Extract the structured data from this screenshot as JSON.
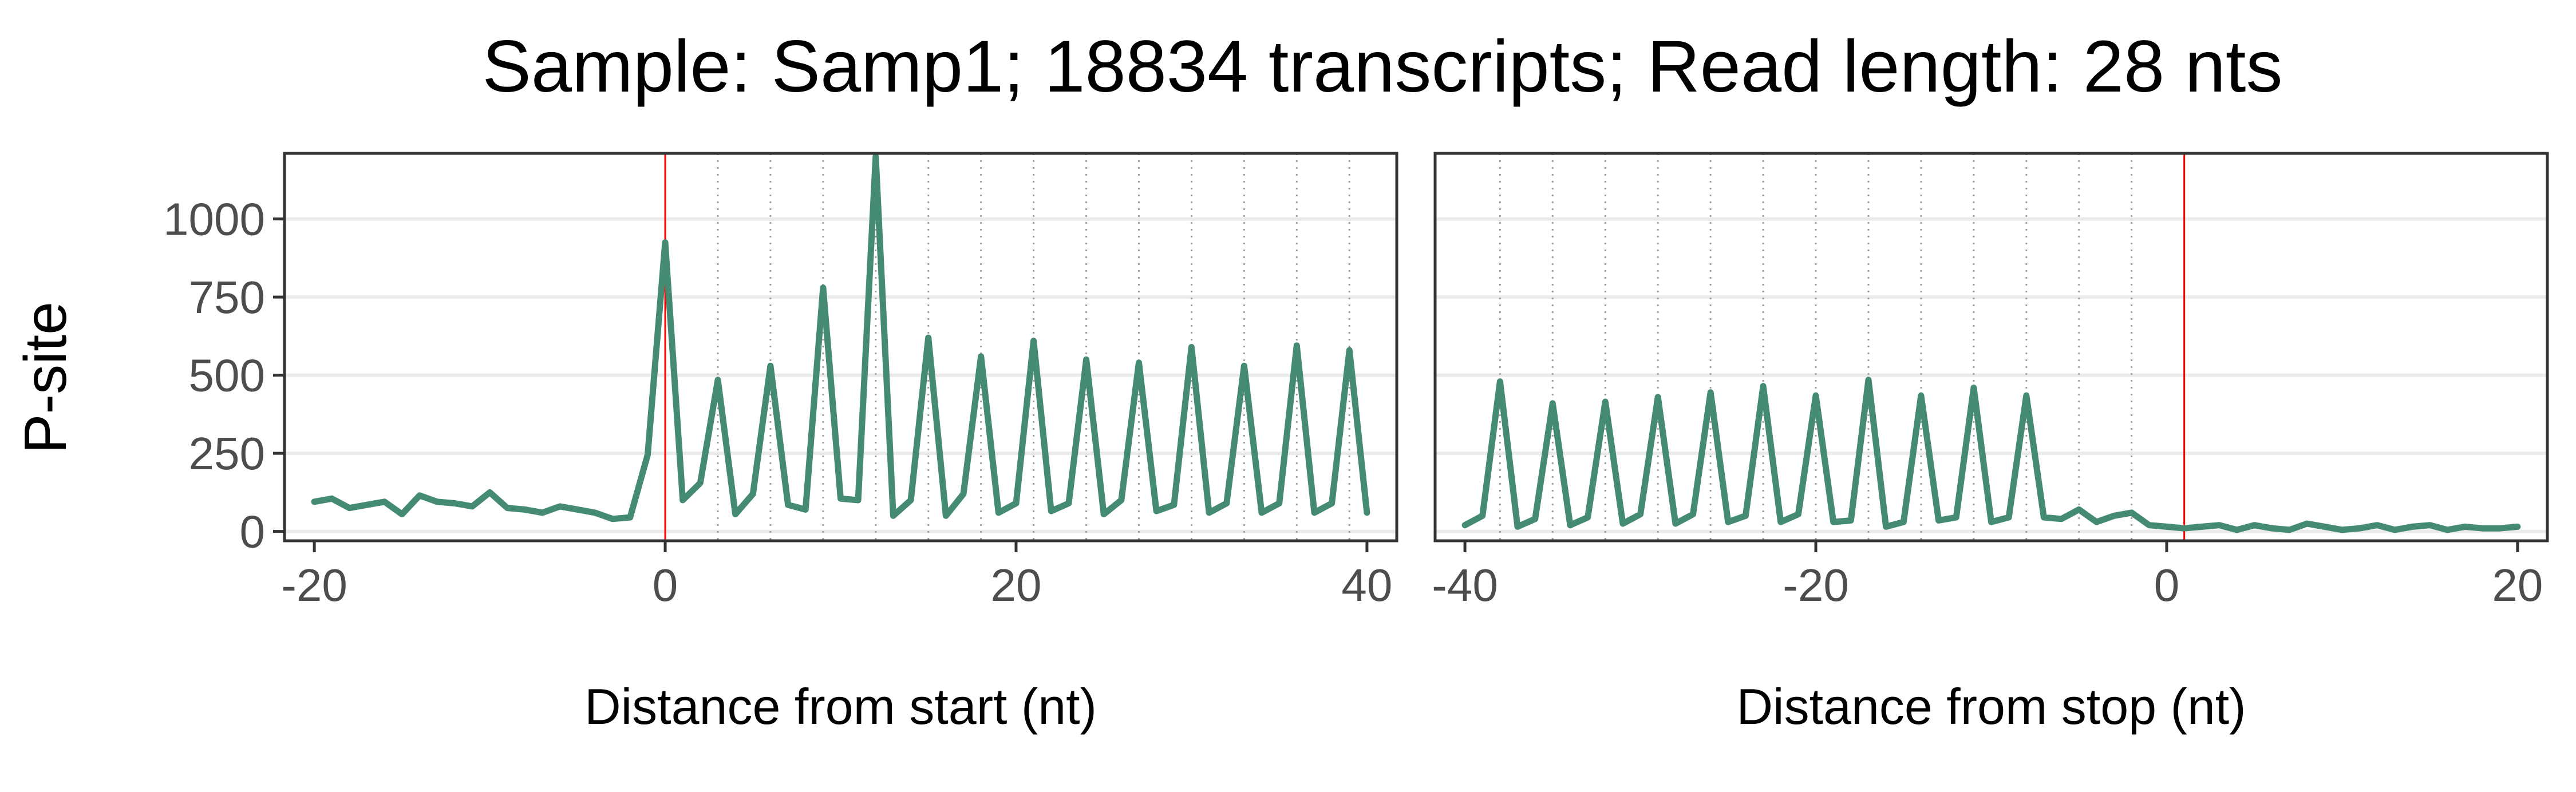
{
  "chart_data": {
    "type": "line",
    "title": "Sample: Samp1; 18834 transcripts; Read length: 28 nts",
    "ylabel": "P-site",
    "ylim": [
      -30,
      1210
    ],
    "yticks": [
      0,
      250,
      500,
      750,
      1000
    ],
    "grid": "horizontal",
    "legend": "none",
    "line_color": "#458b74",
    "reference_line_color": "#ff0000",
    "codon_line_color": "#a0a0a0",
    "panels": [
      {
        "xlabel": "Distance from start (nt)",
        "xlim": [
          -21.7,
          41.7
        ],
        "xticks": [
          -20,
          0,
          20,
          40
        ],
        "reference_x": 0,
        "codon_lines": [
          3,
          6,
          9,
          12,
          15,
          18,
          21,
          24,
          27,
          30,
          33,
          36,
          39
        ],
        "series": [
          {
            "x": [
              -20,
              -19,
              -18,
              -17,
              -16,
              -15,
              -14,
              -13,
              -12,
              -11,
              -10,
              -9,
              -8,
              -7,
              -6,
              -5,
              -4,
              -3,
              -2,
              -1,
              0,
              1,
              2,
              3,
              4,
              5,
              6,
              7,
              8,
              9,
              10,
              11,
              12,
              13,
              14,
              15,
              16,
              17,
              18,
              19,
              20,
              21,
              22,
              23,
              24,
              25,
              26,
              27,
              28,
              29,
              30,
              31,
              32,
              33,
              34,
              35,
              36,
              37,
              38,
              39,
              40
            ],
            "y": [
              95,
              105,
              75,
              85,
              95,
              55,
              115,
              95,
              90,
              80,
              125,
              75,
              70,
              60,
              80,
              70,
              60,
              40,
              45,
              245,
              925,
              100,
              155,
              485,
              55,
              120,
              530,
              85,
              70,
              780,
              105,
              100,
              1200,
              50,
              100,
              620,
              50,
              120,
              560,
              60,
              90,
              610,
              65,
              90,
              550,
              55,
              100,
              540,
              65,
              85,
              590,
              60,
              90,
              530,
              60,
              90,
              595,
              60,
              90,
              580,
              60
            ]
          }
        ]
      },
      {
        "xlabel": "Distance from stop (nt)",
        "xlim": [
          -41.7,
          21.7
        ],
        "xticks": [
          -40,
          -20,
          0,
          20
        ],
        "reference_x": 1,
        "codon_lines": [
          -38,
          -35,
          -32,
          -29,
          -26,
          -23,
          -20,
          -17,
          -14,
          -11,
          -8,
          -5,
          -2
        ],
        "series": [
          {
            "x": [
              -40,
              -39,
              -38,
              -37,
              -36,
              -35,
              -34,
              -33,
              -32,
              -31,
              -30,
              -29,
              -28,
              -27,
              -26,
              -25,
              -24,
              -23,
              -22,
              -21,
              -20,
              -19,
              -18,
              -17,
              -16,
              -15,
              -14,
              -13,
              -12,
              -11,
              -10,
              -9,
              -8,
              -7,
              -6,
              -5,
              -4,
              -3,
              -2,
              -1,
              0,
              1,
              2,
              3,
              4,
              5,
              6,
              7,
              8,
              9,
              10,
              11,
              12,
              13,
              14,
              15,
              16,
              17,
              18,
              19,
              20
            ],
            "y": [
              20,
              50,
              480,
              15,
              40,
              410,
              20,
              45,
              415,
              25,
              55,
              430,
              25,
              55,
              445,
              30,
              50,
              465,
              30,
              55,
              435,
              30,
              35,
              485,
              15,
              30,
              435,
              35,
              45,
              460,
              30,
              45,
              435,
              45,
              40,
              70,
              30,
              50,
              60,
              20,
              15,
              10,
              15,
              20,
              5,
              20,
              10,
              5,
              25,
              15,
              5,
              10,
              20,
              5,
              15,
              20,
              5,
              15,
              10,
              10,
              15
            ]
          }
        ]
      }
    ]
  }
}
